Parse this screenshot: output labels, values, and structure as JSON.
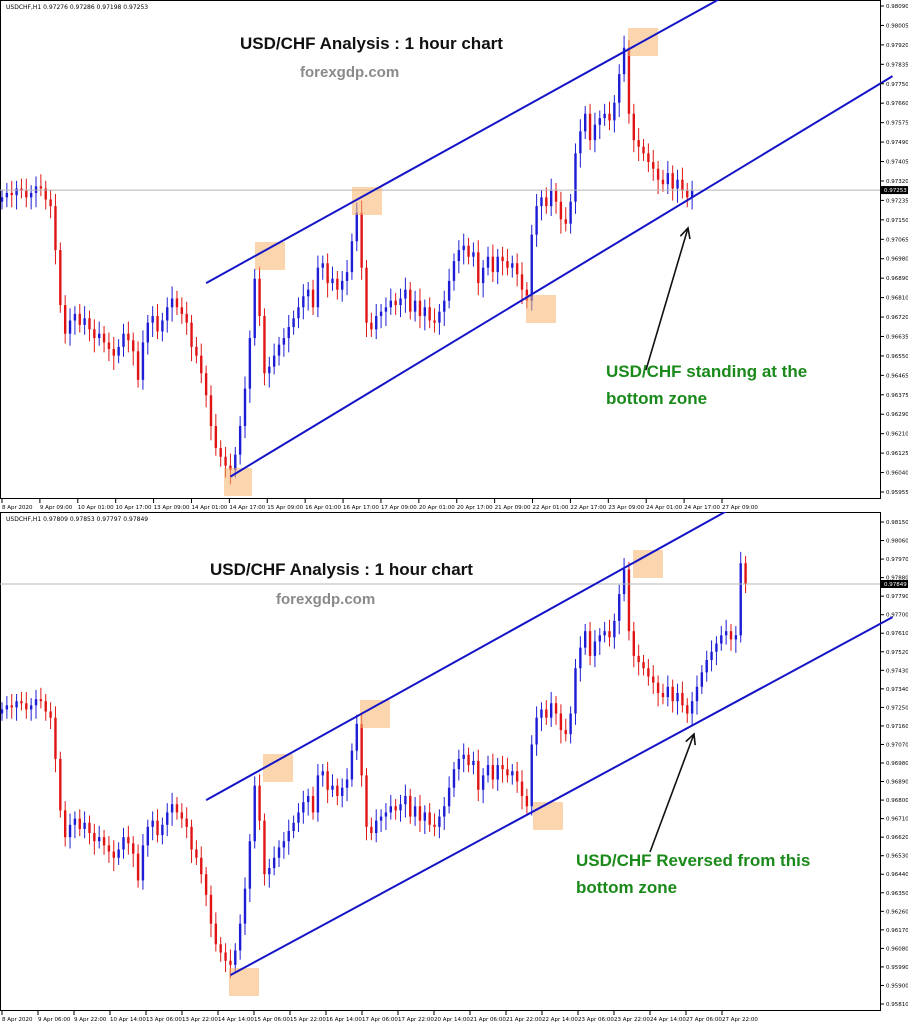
{
  "chart_data": [
    {
      "type": "candlestick",
      "symbol_header": "USDCHF,H1  0.97276 0.97286 0.97198 0.97253",
      "title": "USD/CHF Analysis : 1 hour chart",
      "subtitle": "forexgdp.com",
      "annotation": "USD/CHF standing at the bottom zone",
      "annotation_lines": [
        "USD/CHF standing at the",
        "bottom zone"
      ],
      "current_price": "0.97253",
      "ylim": [
        0.9588,
        0.9809
      ],
      "y_ticks": [
        "0.98090",
        "0.98005",
        "0.97920",
        "0.97835",
        "0.97750",
        "0.97660",
        "0.97575",
        "0.97490",
        "0.97405",
        "0.97320",
        "0.97235",
        "0.97150",
        "0.97065",
        "0.96980",
        "0.96890",
        "0.96810",
        "0.96720",
        "0.96635",
        "0.96550",
        "0.96465",
        "0.96375",
        "0.96290",
        "0.96210",
        "0.96125",
        "0.96040",
        "0.95955"
      ],
      "x_ticks": [
        "8 Apr 2020",
        "9 Apr 09:00",
        "10 Apr 01:00",
        "10 Apr 17:00",
        "13 Apr 09:00",
        "14 Apr 01:00",
        "14 Apr 17:00",
        "15 Apr 09:00",
        "16 Apr 01:00",
        "16 Apr 17:00",
        "17 Apr 09:00",
        "20 Apr 01:00",
        "20 Apr 17:00",
        "21 Apr 09:00",
        "22 Apr 01:00",
        "22 Apr 17:00",
        "23 Apr 09:00",
        "24 Apr 01:00",
        "24 Apr 17:00",
        "27 Apr 09:00"
      ],
      "channel": {
        "upper": {
          "from": {
            "bar": 42,
            "price": 0.9683
          },
          "to": {
            "bar": 142,
            "price": 0.9809
          }
        },
        "lower": {
          "from": {
            "bar": 47,
            "price": 0.9595
          },
          "to": {
            "bar": 175,
            "price": 0.9768
          }
        }
      },
      "close_prices": [
        0.9722,
        0.9724,
        0.9723,
        0.9726,
        0.9725,
        0.9722,
        0.9724,
        0.9727,
        0.9726,
        0.9721,
        0.9718,
        0.9698,
        0.9673,
        0.966,
        0.9666,
        0.9669,
        0.9664,
        0.9667,
        0.9662,
        0.9658,
        0.966,
        0.9656,
        0.9653,
        0.965,
        0.9654,
        0.966,
        0.9657,
        0.9652,
        0.9639,
        0.9656,
        0.9665,
        0.9668,
        0.9661,
        0.9666,
        0.9672,
        0.9676,
        0.9672,
        0.9669,
        0.9665,
        0.9654,
        0.965,
        0.9642,
        0.9632,
        0.9618,
        0.9608,
        0.9604,
        0.96,
        0.9598,
        0.9605,
        0.9618,
        0.9635,
        0.9658,
        0.9685,
        0.9668,
        0.9642,
        0.9645,
        0.965,
        0.9655,
        0.9658,
        0.9663,
        0.9667,
        0.9672,
        0.9677,
        0.968,
        0.9672,
        0.969,
        0.9692,
        0.9683,
        0.9685,
        0.968,
        0.9684,
        0.9688,
        0.9702,
        0.9715,
        0.969,
        0.9665,
        0.9662,
        0.9668,
        0.967,
        0.9672,
        0.9675,
        0.9673,
        0.9676,
        0.968,
        0.967,
        0.9675,
        0.9668,
        0.9672,
        0.9666,
        0.9665,
        0.967,
        0.9675,
        0.9684,
        0.9693,
        0.9698,
        0.97,
        0.9695,
        0.9697,
        0.9683,
        0.969,
        0.9695,
        0.9688,
        0.9695,
        0.9693,
        0.969,
        0.9692,
        0.9687,
        0.968,
        0.9675,
        0.9705,
        0.9718,
        0.9722,
        0.9718,
        0.9725,
        0.972,
        0.9712,
        0.971,
        0.972,
        0.9742,
        0.9752,
        0.976,
        0.9748,
        0.9755,
        0.9758,
        0.976,
        0.9757,
        0.9765,
        0.9778,
        0.979,
        0.976,
        0.9748,
        0.9745,
        0.9742,
        0.9738,
        0.9735,
        0.973,
        0.9728,
        0.9733,
        0.9726,
        0.973,
        0.9725,
        0.9722,
        0.9725
      ]
    },
    {
      "type": "candlestick",
      "symbol_header": "USDCHF,H1  0.97809 0.97853 0.97797 0.97849",
      "title": "USD/CHF Analysis : 1 hour chart",
      "subtitle": "forexgdp.com",
      "annotation": "USD/CHF Reversed from this bottom zone",
      "annotation_lines": [
        "USD/CHF Reversed from this",
        "bottom zone"
      ],
      "current_price": "0.97849",
      "ylim": [
        0.9581,
        0.9815
      ],
      "y_ticks": [
        "0.98150",
        "0.98060",
        "0.97970",
        "0.97880",
        "0.97790",
        "0.97700",
        "0.97610",
        "0.97520",
        "0.97430",
        "0.97340",
        "0.97250",
        "0.97160",
        "0.97070",
        "0.96980",
        "0.96890",
        "0.96800",
        "0.96710",
        "0.96620",
        "0.96530",
        "0.96440",
        "0.96350",
        "0.96260",
        "0.96170",
        "0.96080",
        "0.95990",
        "0.95900",
        "0.95810"
      ],
      "x_ticks": [
        "8 Apr 2020",
        "9 Apr 06:00",
        "9 Apr 22:00",
        "10 Apr 14:00",
        "13 Apr 06:00",
        "13 Apr 22:00",
        "14 Apr 14:00",
        "15 Apr 06:00",
        "15 Apr 22:00",
        "16 Apr 14:00",
        "17 Apr 06:00",
        "17 Apr 22:00",
        "20 Apr 14:00",
        "21 Apr 06:00",
        "21 Apr 22:00",
        "22 Apr 14:00",
        "23 Apr 06:00",
        "23 Apr 22:00",
        "24 Apr 14:00",
        "27 Apr 06:00",
        "27 Apr 22:00"
      ],
      "channel": {
        "upper": {
          "from": {
            "bar": 42,
            "price": 0.968
          },
          "to": {
            "bar": 142,
            "price": 0.9815
          }
        },
        "lower": {
          "from": {
            "bar": 47,
            "price": 0.9595
          },
          "to": {
            "bar": 175,
            "price": 0.9762
          }
        }
      },
      "close_prices": [
        0.9724,
        0.9726,
        0.9725,
        0.9728,
        0.9727,
        0.9724,
        0.9726,
        0.9729,
        0.9728,
        0.9723,
        0.972,
        0.97,
        0.9675,
        0.9662,
        0.9668,
        0.9671,
        0.9666,
        0.9669,
        0.9664,
        0.966,
        0.9662,
        0.9658,
        0.9655,
        0.9652,
        0.9656,
        0.9662,
        0.9659,
        0.9654,
        0.9641,
        0.9658,
        0.9667,
        0.967,
        0.9663,
        0.9668,
        0.9674,
        0.9678,
        0.9674,
        0.9671,
        0.9667,
        0.9656,
        0.9652,
        0.9644,
        0.9634,
        0.962,
        0.961,
        0.9606,
        0.9602,
        0.96,
        0.9607,
        0.962,
        0.9637,
        0.966,
        0.9687,
        0.967,
        0.9644,
        0.9647,
        0.9652,
        0.9657,
        0.966,
        0.9665,
        0.9669,
        0.9674,
        0.9679,
        0.9682,
        0.9674,
        0.9692,
        0.9694,
        0.9685,
        0.9687,
        0.9682,
        0.9686,
        0.969,
        0.9704,
        0.9717,
        0.9692,
        0.9667,
        0.9664,
        0.967,
        0.9672,
        0.9674,
        0.9677,
        0.9675,
        0.9678,
        0.9682,
        0.9672,
        0.9677,
        0.967,
        0.9674,
        0.9668,
        0.9667,
        0.9672,
        0.9677,
        0.9686,
        0.9695,
        0.97,
        0.9702,
        0.9697,
        0.9699,
        0.9685,
        0.9692,
        0.9697,
        0.969,
        0.9697,
        0.9695,
        0.9692,
        0.9694,
        0.9689,
        0.9682,
        0.9677,
        0.9707,
        0.972,
        0.9724,
        0.972,
        0.9727,
        0.9722,
        0.9714,
        0.9712,
        0.9722,
        0.9744,
        0.9754,
        0.9762,
        0.975,
        0.9757,
        0.976,
        0.9762,
        0.9759,
        0.9767,
        0.978,
        0.9792,
        0.9762,
        0.975,
        0.9747,
        0.9744,
        0.974,
        0.9737,
        0.9732,
        0.973,
        0.9735,
        0.9728,
        0.9732,
        0.9726,
        0.9722,
        0.9728,
        0.9735,
        0.9742,
        0.9748,
        0.9752,
        0.9756,
        0.976,
        0.9762,
        0.9758,
        0.976,
        0.9795,
        0.9785
      ]
    }
  ]
}
